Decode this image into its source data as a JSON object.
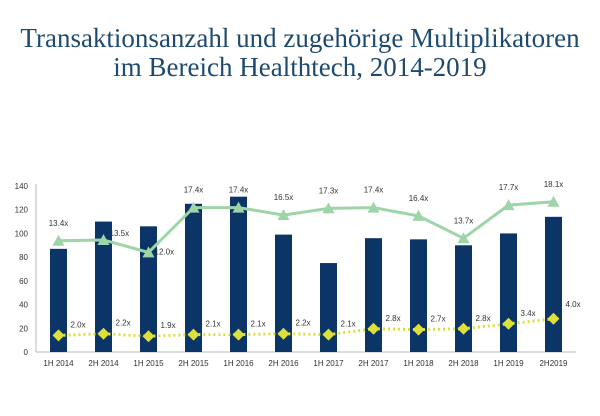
{
  "title_line1": "Transaktionsanzahl und zugehörige Multiplikatoren",
  "title_line2": "im Bereich Healthtech, 2014-2019",
  "chart_data": {
    "type": "bar",
    "title": "Transaktionsanzahl und zugehörige Multiplikatoren im Bereich Healthtech, 2014-2019",
    "categories": [
      "1H 2014",
      "2H 2014",
      "1H 2015",
      "2H 2015",
      "1H 2016",
      "2H 2016",
      "1H 2017",
      "2H 2017",
      "1H 2018",
      "2H 2018",
      "1H 2019",
      "2H2019"
    ],
    "ylim": [
      0,
      140
    ],
    "yticks": [
      0,
      20,
      40,
      60,
      80,
      100,
      120,
      140
    ],
    "grid": false,
    "legend": "none",
    "series": [
      {
        "type": "bar",
        "values": [
          87,
          110,
          106,
          125,
          131,
          99,
          75,
          96,
          95,
          90,
          100,
          114
        ],
        "color": "#0b3467"
      },
      {
        "type": "line",
        "marker": "triangle",
        "values": [
          13.4,
          13.5,
          12.0,
          17.4,
          17.4,
          16.5,
          17.3,
          17.4,
          16.4,
          13.7,
          17.7,
          18.1
        ],
        "labels": [
          "13.4x",
          "13.5x",
          "12.0x",
          "17.4x",
          "17.4x",
          "16.5x",
          "17.3x",
          "17.4x",
          "16.4x",
          "13.7x",
          "17.7x",
          "18.1x"
        ],
        "color": "#9dd4a8"
      },
      {
        "type": "line",
        "marker": "diamond",
        "style": "dotted",
        "values": [
          2.0,
          2.2,
          1.9,
          2.1,
          2.1,
          2.2,
          2.1,
          2.8,
          2.7,
          2.8,
          3.4,
          4.0
        ],
        "labels": [
          "2.0x",
          "2.2x",
          "1.9x",
          "2.1x",
          "2.1x",
          "2.2x",
          "2.1x",
          "2.8x",
          "2.7x",
          "2.8x",
          "3.4x",
          "4.0x"
        ],
        "color": "#dde03a"
      }
    ]
  }
}
